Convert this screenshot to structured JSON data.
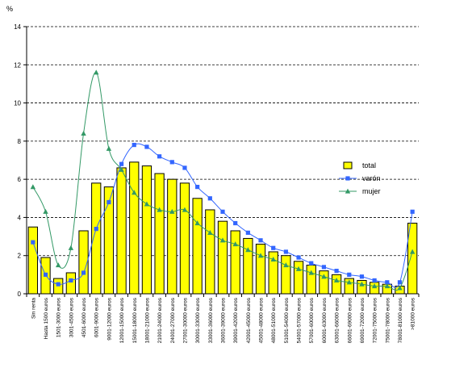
{
  "chart_data": {
    "type": "bar",
    "title": "",
    "xlabel": "",
    "ylabel": "%",
    "ylim": [
      0,
      14
    ],
    "yticks": [
      0,
      2,
      4,
      6,
      8,
      10,
      12,
      14
    ],
    "grid": "horizontal-dashed",
    "legend_position": "right",
    "categories": [
      "Sin renta",
      "Hasta 1500 euros",
      "1501-3000 euros",
      "3001-4500 euros",
      "4501-6000 euros",
      "6001-9000 euros",
      "9001-12000 euros",
      "12001-15000 euros",
      "15001-18000 euros",
      "18001-21000 euros",
      "21001-24000 euros",
      "24001-27000 euros",
      "27001-30000 euros",
      "30001-33000 euros",
      "33001-36000 euros",
      "36001-39000 euros",
      "39001-42000 euros",
      "42001-45000 euros",
      "45001-48000 euros",
      "48001-51000 euros",
      "51001-54000 euros",
      "54001-57000 euros",
      "57001-60000 euros",
      "60001-63000 euros",
      "63001-66000 euros",
      "66001-69000 euros",
      "69001-72000 euros",
      "72001-75000 euros",
      "75001-78000 euros",
      "78001-81000 euros",
      ">81000 euros"
    ],
    "series": [
      {
        "name": "total",
        "kind": "bar",
        "color": "#ffff00",
        "values": [
          3.5,
          1.9,
          0.8,
          1.1,
          3.3,
          5.8,
          5.6,
          6.6,
          6.9,
          6.7,
          6.3,
          6.0,
          5.8,
          5.0,
          4.4,
          3.8,
          3.3,
          2.9,
          2.6,
          2.2,
          2.0,
          1.7,
          1.5,
          1.2,
          1.0,
          0.8,
          0.7,
          0.6,
          0.5,
          0.4,
          3.7
        ]
      },
      {
        "name": "varón",
        "kind": "line",
        "marker": "square",
        "color": "#3366ff",
        "values": [
          2.7,
          1.0,
          0.5,
          0.7,
          1.1,
          3.4,
          4.8,
          6.8,
          7.8,
          7.7,
          7.2,
          6.9,
          6.6,
          5.6,
          5.0,
          4.3,
          3.7,
          3.2,
          2.8,
          2.4,
          2.2,
          1.9,
          1.6,
          1.4,
          1.2,
          1.0,
          0.9,
          0.7,
          0.6,
          0.6,
          4.3
        ]
      },
      {
        "name": "mujer",
        "kind": "line",
        "marker": "triangle",
        "color": "#339966",
        "values": [
          5.6,
          4.3,
          1.5,
          2.4,
          8.4,
          11.6,
          7.6,
          6.5,
          5.3,
          4.7,
          4.4,
          4.3,
          4.4,
          3.7,
          3.2,
          2.8,
          2.6,
          2.3,
          2.0,
          1.8,
          1.5,
          1.3,
          1.1,
          0.9,
          0.7,
          0.6,
          0.5,
          0.4,
          0.4,
          0.3,
          2.2
        ]
      }
    ]
  }
}
